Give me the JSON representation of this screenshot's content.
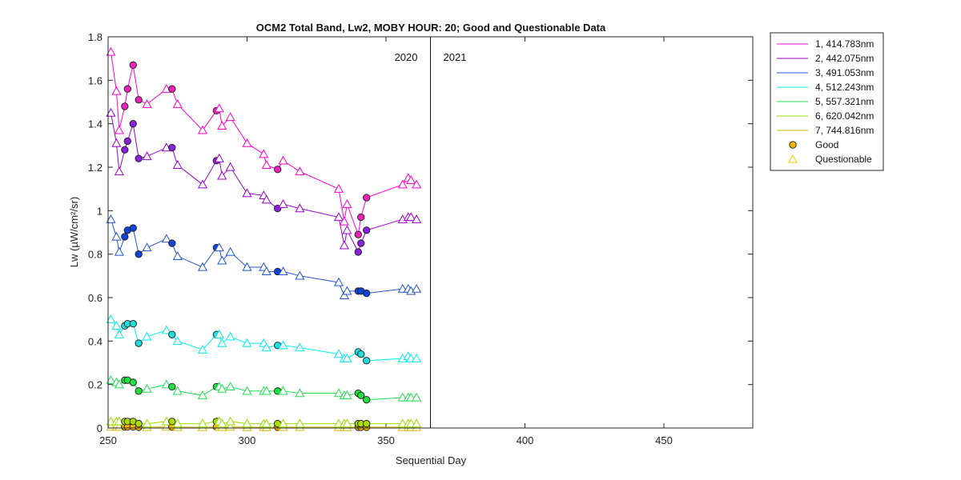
{
  "chart_data": {
    "type": "line",
    "title": "OCM2 Total Band,  Lw2, MOBY HOUR: 20;  Good and Questionable Data",
    "xlabel": "Sequential Day",
    "ylabel": "Lw (µW/cm²/sr)",
    "xlim": [
      250,
      482
    ],
    "ylim": [
      0,
      1.8
    ],
    "xticks": [
      250,
      300,
      350,
      400,
      450
    ],
    "yticks": [
      0,
      0.2,
      0.4,
      0.6,
      0.8,
      1,
      1.2,
      1.4,
      1.6,
      1.8
    ],
    "year_divider_x": 366,
    "year_labels": [
      "2020",
      "2021"
    ],
    "marker_legend": {
      "good": "Good",
      "questionable": "Questionable"
    },
    "x": [
      251,
      253,
      254,
      256,
      257,
      259,
      261,
      264,
      271,
      273,
      275,
      284,
      289,
      290,
      291,
      294,
      300,
      306,
      307,
      311,
      313,
      319,
      333,
      335,
      336,
      340,
      341,
      343,
      356,
      358,
      359,
      361
    ],
    "flags": [
      "Q",
      "Q",
      "Q",
      "G",
      "G",
      "G",
      "G",
      "Q",
      "Q",
      "G",
      "Q",
      "Q",
      "G",
      "Q",
      "Q",
      "Q",
      "Q",
      "Q",
      "Q",
      "G",
      "Q",
      "Q",
      "Q",
      "Q",
      "Q",
      "G",
      "G",
      "G",
      "Q",
      "Q",
      "Q",
      "Q"
    ],
    "series": [
      {
        "name": "1, 414.783nm",
        "color": "#ff00cc",
        "fill": "#ee22bb",
        "values": [
          1.73,
          1.55,
          1.37,
          1.48,
          1.56,
          1.67,
          1.51,
          1.49,
          1.56,
          1.56,
          1.49,
          1.37,
          1.46,
          1.47,
          1.39,
          1.43,
          1.31,
          1.26,
          1.21,
          1.19,
          1.23,
          1.18,
          1.1,
          0.95,
          1.03,
          0.89,
          0.97,
          1.06,
          1.12,
          1.15,
          1.14,
          1.12
        ]
      },
      {
        "name": "2, 442.075nm",
        "color": "#9900cc",
        "fill": "#8822dd",
        "values": [
          1.45,
          1.31,
          1.18,
          1.28,
          1.32,
          1.4,
          1.24,
          1.25,
          1.29,
          1.29,
          1.21,
          1.12,
          1.23,
          1.24,
          1.16,
          1.2,
          1.08,
          1.07,
          1.05,
          1.01,
          1.03,
          1.01,
          0.97,
          0.84,
          0.91,
          0.81,
          0.85,
          0.91,
          0.96,
          0.97,
          0.97,
          0.96
        ]
      },
      {
        "name": "3, 491.053nm",
        "color": "#2255cc",
        "fill": "#1144dd",
        "values": [
          0.96,
          0.88,
          0.81,
          0.88,
          0.91,
          0.92,
          0.8,
          0.83,
          0.87,
          0.85,
          0.79,
          0.74,
          0.83,
          0.83,
          0.77,
          0.81,
          0.74,
          0.74,
          0.72,
          0.72,
          0.72,
          0.7,
          0.67,
          0.61,
          0.63,
          0.63,
          0.63,
          0.62,
          0.64,
          0.64,
          0.63,
          0.64
        ]
      },
      {
        "name": "4, 512.243nm",
        "color": "#00eeee",
        "fill": "#22dddd",
        "values": [
          0.5,
          0.47,
          0.43,
          0.47,
          0.48,
          0.48,
          0.39,
          0.42,
          0.45,
          0.43,
          0.4,
          0.36,
          0.43,
          0.43,
          0.39,
          0.42,
          0.39,
          0.39,
          0.37,
          0.38,
          0.38,
          0.37,
          0.34,
          0.32,
          0.32,
          0.35,
          0.34,
          0.31,
          0.32,
          0.33,
          0.32,
          0.32
        ]
      },
      {
        "name": "5, 557.321nm",
        "color": "#22dd55",
        "fill": "#22dd44",
        "values": [
          0.22,
          0.21,
          0.2,
          0.22,
          0.22,
          0.21,
          0.17,
          0.18,
          0.2,
          0.19,
          0.17,
          0.15,
          0.19,
          0.19,
          0.18,
          0.19,
          0.17,
          0.17,
          0.17,
          0.17,
          0.17,
          0.16,
          0.16,
          0.15,
          0.15,
          0.16,
          0.15,
          0.13,
          0.14,
          0.14,
          0.14,
          0.14
        ]
      },
      {
        "name": "6, 620.042nm",
        "color": "#99dd00",
        "fill": "#aadd00",
        "values": [
          0.03,
          0.03,
          0.03,
          0.03,
          0.03,
          0.03,
          0.02,
          0.02,
          0.03,
          0.03,
          0.02,
          0.02,
          0.03,
          0.03,
          0.02,
          0.03,
          0.02,
          0.02,
          0.02,
          0.02,
          0.02,
          0.02,
          0.02,
          0.02,
          0.02,
          0.02,
          0.02,
          0.02,
          0.02,
          0.02,
          0.02,
          0.02
        ]
      },
      {
        "name": "7, 744.816nm",
        "color": "#ddbb00",
        "fill": "#ffbb00",
        "values": [
          0.005,
          0.005,
          0.005,
          0.005,
          0.005,
          0.005,
          0.004,
          0.004,
          0.005,
          0.005,
          0.004,
          0.004,
          0.005,
          0.005,
          0.004,
          0.005,
          0.004,
          0.004,
          0.004,
          0.004,
          0.004,
          0.004,
          0.004,
          0.004,
          0.004,
          0.004,
          0.004,
          0.004,
          0.004,
          0.004,
          0.004,
          0.004
        ]
      }
    ]
  }
}
